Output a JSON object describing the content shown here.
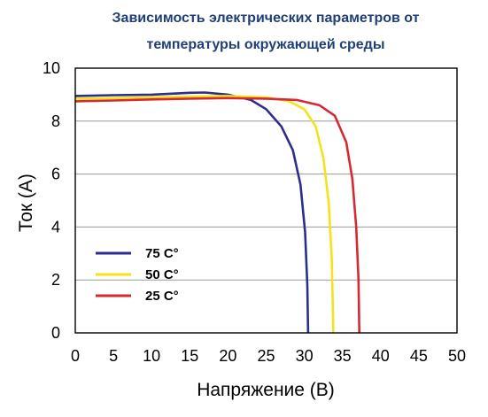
{
  "chart_data": {
    "type": "line",
    "title_line1": "Зависимость электрических параметров от",
    "title_line2": "температуры окружающей среды",
    "xlabel": "Напряжение (В)",
    "ylabel": "Ток (А)",
    "xlim": [
      0,
      50
    ],
    "ylim": [
      0,
      10
    ],
    "x_ticks": [
      0,
      5,
      10,
      15,
      20,
      25,
      30,
      35,
      40,
      45,
      50
    ],
    "y_ticks": [
      0,
      2,
      4,
      6,
      8,
      10
    ],
    "grid": "horizontal",
    "legend_position": "lower-left",
    "series": [
      {
        "name": "75 C°",
        "color": "#2b2e8c",
        "points": [
          [
            0,
            8.95
          ],
          [
            5,
            8.98
          ],
          [
            10,
            9.0
          ],
          [
            15,
            9.07
          ],
          [
            17,
            9.08
          ],
          [
            20,
            9.0
          ],
          [
            23,
            8.8
          ],
          [
            25,
            8.45
          ],
          [
            27,
            7.8
          ],
          [
            28.5,
            6.9
          ],
          [
            29.5,
            5.6
          ],
          [
            30.1,
            3.8
          ],
          [
            30.4,
            1.8
          ],
          [
            30.5,
            0
          ]
        ]
      },
      {
        "name": "50 C°",
        "color": "#f5e21b",
        "points": [
          [
            0,
            8.85
          ],
          [
            5,
            8.87
          ],
          [
            10,
            8.9
          ],
          [
            15,
            8.93
          ],
          [
            20,
            8.95
          ],
          [
            25,
            8.9
          ],
          [
            28,
            8.75
          ],
          [
            30,
            8.45
          ],
          [
            31.5,
            7.8
          ],
          [
            32.5,
            6.6
          ],
          [
            33.2,
            4.9
          ],
          [
            33.6,
            2.8
          ],
          [
            33.8,
            0
          ]
        ]
      },
      {
        "name": "25 C°",
        "color": "#d42a33",
        "points": [
          [
            0,
            8.75
          ],
          [
            5,
            8.78
          ],
          [
            10,
            8.82
          ],
          [
            15,
            8.85
          ],
          [
            20,
            8.87
          ],
          [
            25,
            8.85
          ],
          [
            29,
            8.8
          ],
          [
            32,
            8.6
          ],
          [
            34,
            8.2
          ],
          [
            35.5,
            7.2
          ],
          [
            36.3,
            5.8
          ],
          [
            36.8,
            4.0
          ],
          [
            37.1,
            2.0
          ],
          [
            37.2,
            0
          ]
        ]
      }
    ]
  }
}
